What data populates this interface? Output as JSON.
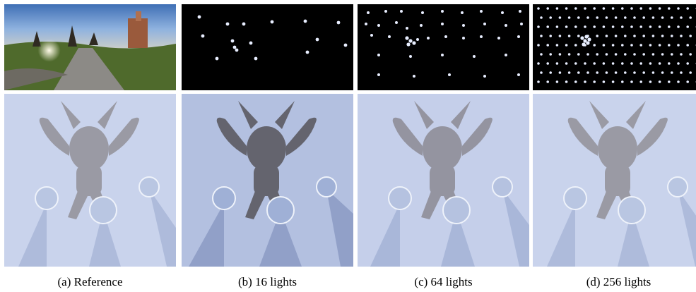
{
  "figure": {
    "panels": [
      {
        "id": "a",
        "caption": "(a) Reference"
      },
      {
        "id": "b",
        "caption": "(b) 16 lights"
      },
      {
        "id": "c",
        "caption": "(c) 64 lights"
      },
      {
        "id": "d",
        "caption": "(d) 256 lights"
      }
    ]
  },
  "colors": {
    "sky": "#5a88c8",
    "grass": "#4f6a2c",
    "road": "#8c8a86",
    "floor": "#c9d3ec",
    "statue": "#9a9aa4",
    "light_point": "#e8eeff"
  }
}
